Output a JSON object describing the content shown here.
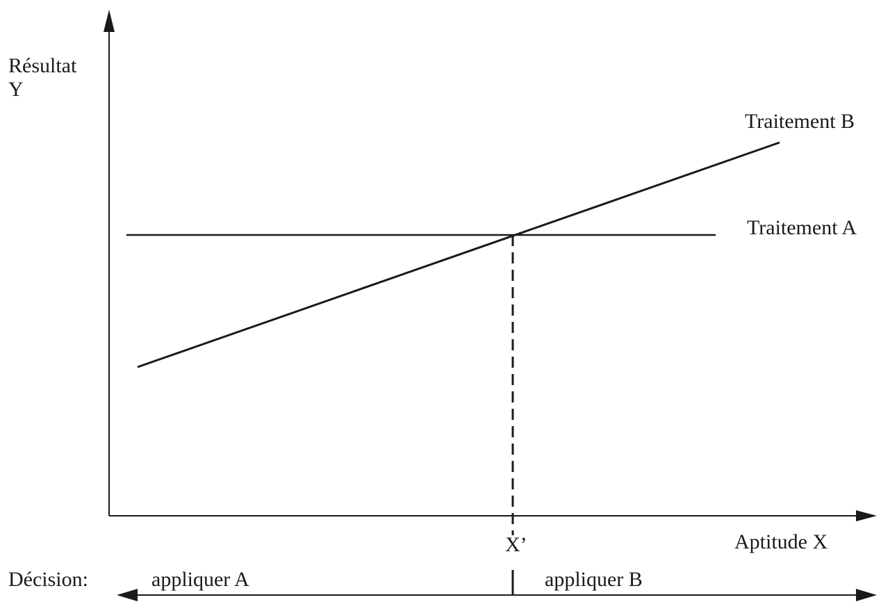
{
  "y_axis_label": {
    "line1": "Résultat",
    "line2": "Y"
  },
  "x_axis_label": "Aptitude X",
  "lines": {
    "treatment_b": "Traitement B",
    "treatment_a": "Traitement A"
  },
  "intersection_label": "X’",
  "decision": {
    "label": "Décision:",
    "left": "appliquer A",
    "right": "appliquer B"
  },
  "colors": {
    "ink": "#1a1a1a",
    "background": "#ffffff"
  }
}
